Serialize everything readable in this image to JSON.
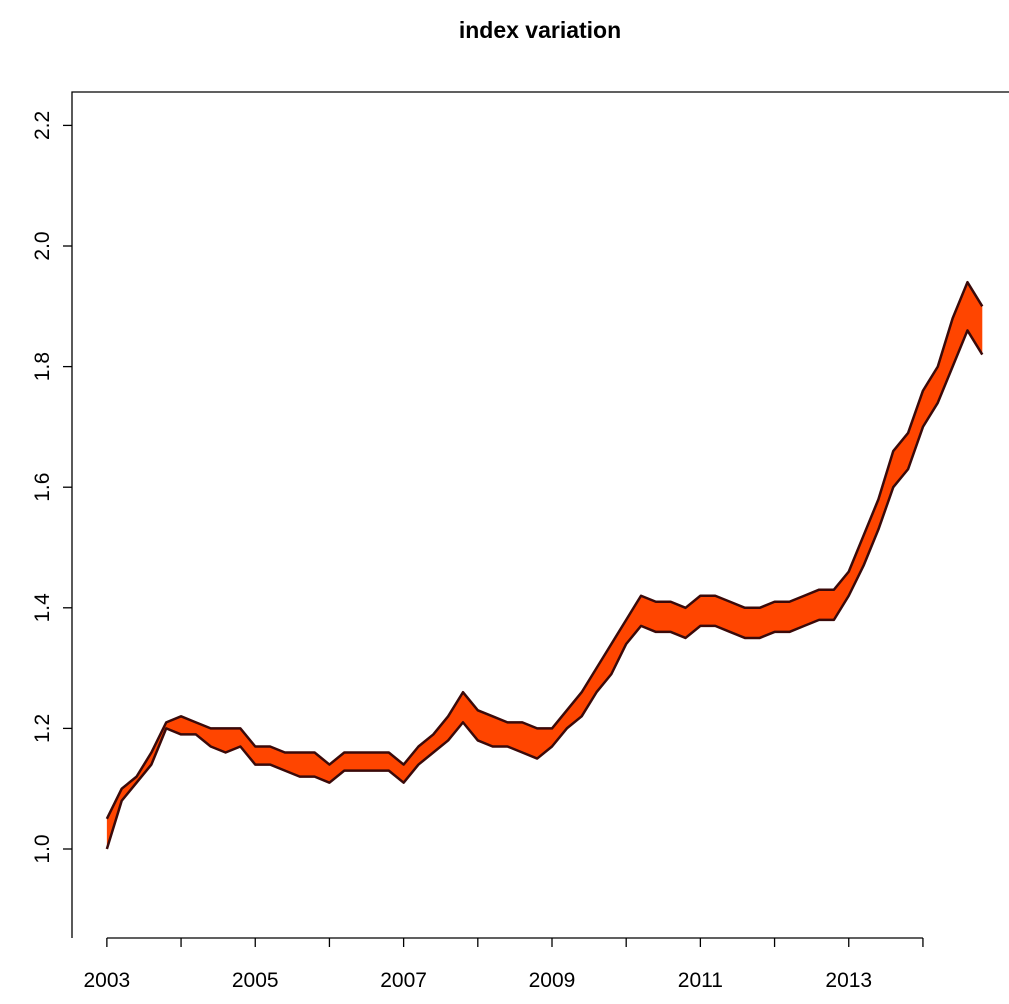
{
  "chart_data": {
    "type": "band",
    "title": "index variation",
    "x": [
      2003.0,
      2003.2,
      2003.4,
      2003.6,
      2003.8,
      2004.0,
      2004.2,
      2004.4,
      2004.6,
      2004.8,
      2005.0,
      2005.2,
      2005.4,
      2005.6,
      2005.8,
      2006.0,
      2006.2,
      2006.4,
      2006.6,
      2006.8,
      2007.0,
      2007.2,
      2007.4,
      2007.6,
      2007.8,
      2008.0,
      2008.2,
      2008.4,
      2008.6,
      2008.8,
      2009.0,
      2009.2,
      2009.4,
      2009.6,
      2009.8,
      2010.0,
      2010.2,
      2010.4,
      2010.6,
      2010.8,
      2011.0,
      2011.2,
      2011.4,
      2011.6,
      2011.8,
      2012.0,
      2012.2,
      2012.4,
      2012.6,
      2012.8,
      2013.0,
      2013.2,
      2013.4,
      2013.6,
      2013.8,
      2014.0,
      2014.2,
      2014.4,
      2014.6,
      2014.8
    ],
    "series": [
      {
        "color": "#3a0a0a",
        "values": [
          1.05,
          1.1,
          1.12,
          1.16,
          1.21,
          1.22,
          1.21,
          1.2,
          1.2,
          1.2,
          1.17,
          1.17,
          1.16,
          1.16,
          1.16,
          1.14,
          1.16,
          1.16,
          1.16,
          1.16,
          1.14,
          1.17,
          1.19,
          1.22,
          1.26,
          1.23,
          1.22,
          1.21,
          1.21,
          1.2,
          1.2,
          1.23,
          1.26,
          1.3,
          1.34,
          1.38,
          1.42,
          1.41,
          1.41,
          1.4,
          1.42,
          1.42,
          1.41,
          1.4,
          1.4,
          1.41,
          1.41,
          1.42,
          1.43,
          1.43,
          1.46,
          1.52,
          1.58,
          1.66,
          1.69,
          1.76,
          1.8,
          1.88,
          1.94,
          1.9
        ]
      },
      {
        "color": "#3a0a0a",
        "values": [
          1.0,
          1.08,
          1.11,
          1.14,
          1.2,
          1.19,
          1.19,
          1.17,
          1.16,
          1.17,
          1.14,
          1.14,
          1.13,
          1.12,
          1.12,
          1.11,
          1.13,
          1.13,
          1.13,
          1.13,
          1.11,
          1.14,
          1.16,
          1.18,
          1.21,
          1.18,
          1.17,
          1.17,
          1.16,
          1.15,
          1.17,
          1.2,
          1.22,
          1.26,
          1.29,
          1.34,
          1.37,
          1.36,
          1.36,
          1.35,
          1.37,
          1.37,
          1.36,
          1.35,
          1.35,
          1.36,
          1.36,
          1.37,
          1.38,
          1.38,
          1.42,
          1.47,
          1.53,
          1.6,
          1.63,
          1.7,
          1.74,
          1.8,
          1.86,
          1.82
        ]
      }
    ],
    "fill_color": "#ff4500",
    "xlim": [
      2002.53,
      2015.16
    ],
    "ylim": [
      0.8524,
      2.2554
    ],
    "xticks": [
      2003,
      2005,
      2007,
      2009,
      2011,
      2013
    ],
    "xticks_minor": [
      2004,
      2006,
      2008,
      2010,
      2012,
      2014
    ],
    "yticks": [
      {
        "value": 1.0,
        "label": "1.0"
      },
      {
        "value": 1.2,
        "label": "1.2"
      },
      {
        "value": 1.4,
        "label": "1.4"
      },
      {
        "value": 1.6,
        "label": "1.6"
      },
      {
        "value": 1.8,
        "label": "1.8"
      },
      {
        "value": 2.0,
        "label": "2.0"
      },
      {
        "value": 2.2,
        "label": "2.2"
      }
    ]
  }
}
